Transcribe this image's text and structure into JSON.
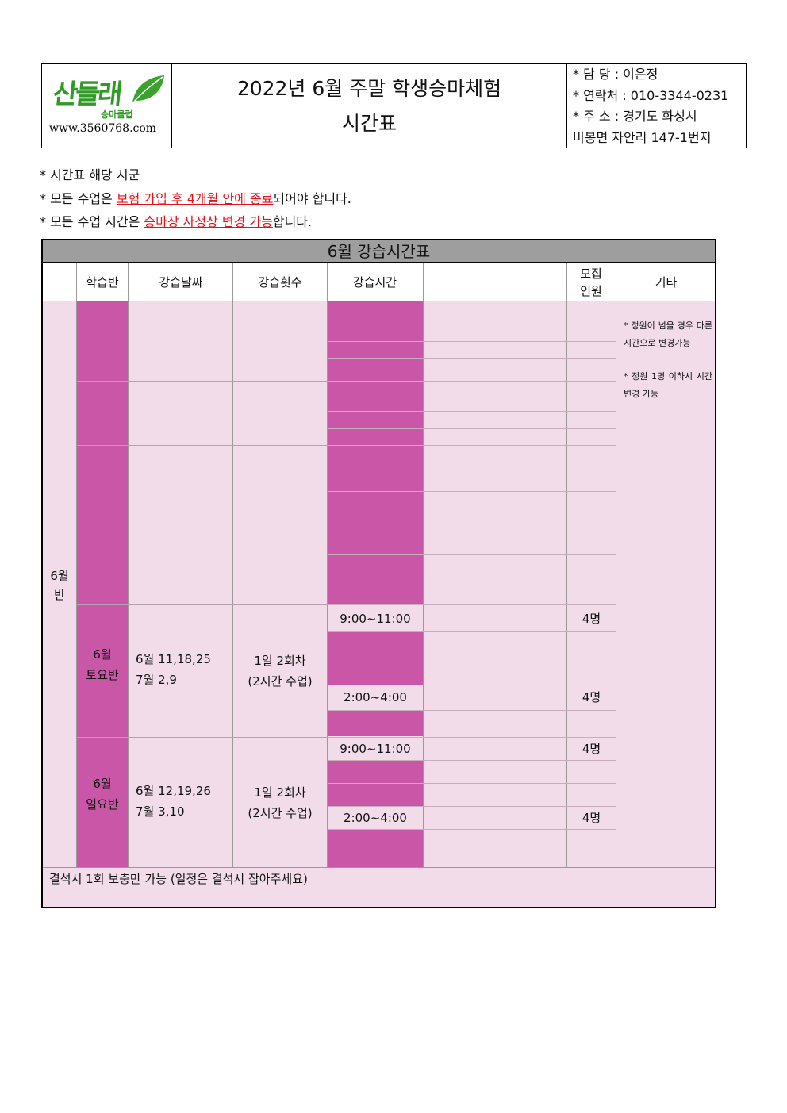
{
  "header": {
    "logo": {
      "name": "산들래",
      "sub": "승마클럽",
      "url": "www.3560768.com",
      "color": "#2f9a25"
    },
    "title_line1": "2022년 6월 주말 학생승마체험",
    "title_line2": "시간표",
    "contact": [
      "* 담  당 : 이은정",
      "* 연락처 : 010-3344-0231",
      "* 주  소 : 경기도 화성시",
      "비봉면 자안리 147-1번지"
    ]
  },
  "notes": {
    "n1": "* 시간표 해당 시군",
    "n2_pre": "* 모든 수업은 ",
    "n2_red": "보험 가입 후 4개월 안에 종료",
    "n2_post": "되어야 합니다.",
    "n3_pre": "* 모든 수업 시간은 ",
    "n3_red": "승마장 사정상 변경 가능",
    "n3_post": "합니다.",
    "red_color": "#e3121b"
  },
  "schedule": {
    "title": "6월 강습시간표",
    "columns": {
      "class": "학습반",
      "dates": "강습날짜",
      "sessions": "강습횟수",
      "time": "강습시간",
      "recruit_l1": "모집",
      "recruit_l2": "인원",
      "etc": "기타"
    },
    "month_label_l1": "6월",
    "month_label_l2": "반",
    "saturday": {
      "class_l1": "6월",
      "class_l2": "토요반",
      "dates_l1": "6월 11,18,25",
      "dates_l2": "7월 2,9",
      "sessions_l1": "1일 2회차",
      "sessions_l2": "(2시간 수업)",
      "time1": "9:00~11:00",
      "count1": "4명",
      "time2": "2:00~4:00",
      "count2": "4명"
    },
    "sunday": {
      "class_l1": "6월",
      "class_l2": "일요반",
      "dates_l1": "6월 12,19,26",
      "dates_l2": "7월 3,10",
      "sessions_l1": "1일 2회차",
      "sessions_l2": "(2시간 수업)",
      "time1": "9:00~11:00",
      "count1": "4명",
      "time2": "2:00~4:00",
      "count2": "4명"
    },
    "etc_note1": "* 정원이 넘을 경우 다른시간으로 변경가능",
    "etc_note2": "* 정원 1명 이하시 시간 변경 가능",
    "footer": "결석시 1회 보충만 가능 (일정은 결석시 잡아주세요)",
    "colors": {
      "background": "#f3dcea",
      "magenta": "#c956a6",
      "title_bar": "#9e9e9e"
    }
  }
}
